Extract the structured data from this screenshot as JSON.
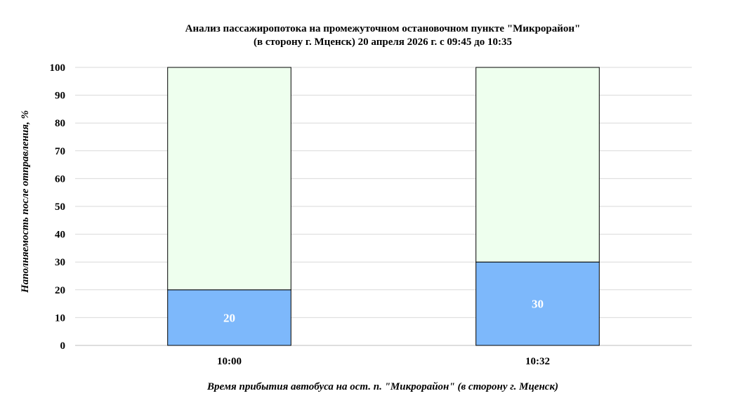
{
  "chart_data": {
    "type": "bar",
    "stacked": true,
    "title": "Анализ пассажиропотока на промежуточном остановочном пункте \"Микрорайон\"",
    "subtitle": "(в сторону г. Мценск) 20 апреля 2026 г. с 09:45 до 10:35",
    "xlabel": "Время прибытия автобуса на ост. п.  \"Микрорайон\" (в сторону г. Мценск)",
    "ylabel": "Наполняемость после отправления, %",
    "categories": [
      "10:00",
      "10:32"
    ],
    "series": [
      {
        "values": [
          20,
          30
        ],
        "color": "#7db8fb",
        "show_labels": true
      },
      {
        "values": [
          80,
          70
        ],
        "color": "#eeffee",
        "show_labels": false
      }
    ],
    "ylim": [
      0,
      100
    ],
    "yticks": [
      0,
      10,
      20,
      30,
      40,
      50,
      60,
      70,
      80,
      90,
      100
    ],
    "grid": true,
    "legend": "none"
  }
}
